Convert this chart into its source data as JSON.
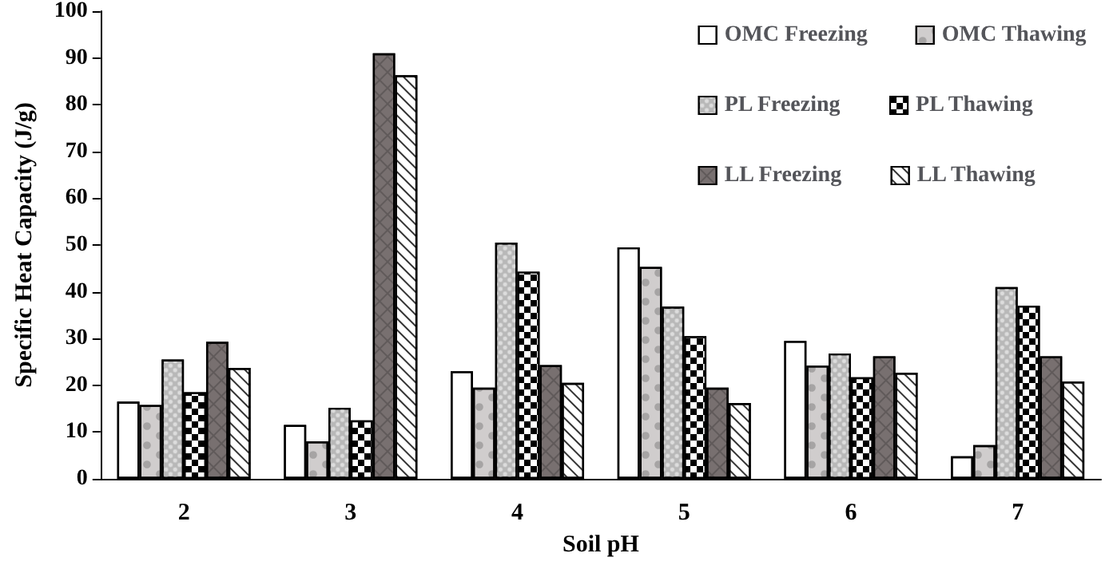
{
  "chart_data": {
    "type": "bar",
    "xlabel": "Soil pH",
    "ylabel": "Specific Heat Capacity (J/g)",
    "categories": [
      "2",
      "3",
      "4",
      "5",
      "6",
      "7"
    ],
    "series": [
      {
        "name": "OMC Freezing",
        "color": "#ffffff",
        "values": [
          16.5,
          11.5,
          23,
          49.5,
          29.5,
          4.8
        ]
      },
      {
        "name": "OMC Thawing",
        "color": "#d0cdcd",
        "values": [
          15.8,
          8,
          19.5,
          45.3,
          24.2,
          7.2
        ]
      },
      {
        "name": "PL Freezing",
        "color": "#b8b8b8",
        "values": [
          25.5,
          15.2,
          50.5,
          36.8,
          26.8,
          41
        ]
      },
      {
        "name": "PL Thawing",
        "color": "#000000",
        "values": [
          18.5,
          12.5,
          44.3,
          30.5,
          21.7,
          37
        ]
      },
      {
        "name": "LL Freezing",
        "color": "#787070",
        "values": [
          29.3,
          91,
          24.3,
          19.5,
          26.2,
          26.2
        ]
      },
      {
        "name": "LL Thawing",
        "color": "#ffffff",
        "values": [
          23.7,
          86.3,
          20.5,
          16.2,
          22.7,
          20.8
        ]
      }
    ],
    "ylim": [
      0,
      100
    ],
    "yticks": [
      0,
      10,
      20,
      30,
      40,
      50,
      60,
      70,
      80,
      90,
      100
    ],
    "grid": false,
    "legend": "top right"
  }
}
